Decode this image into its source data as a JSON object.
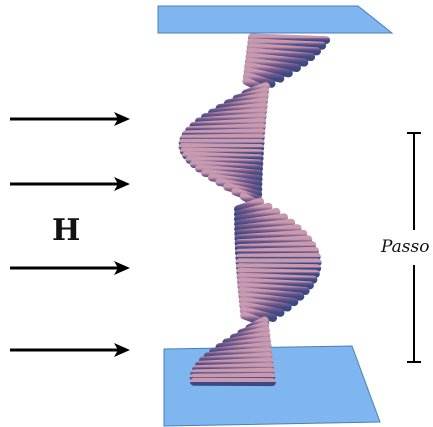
{
  "figure": {
    "field_label": "H",
    "pitch_label": "Passo",
    "arrow_count": 4,
    "colors": {
      "plate_fill": "#7fb6ef",
      "plate_stroke": "#4a7fb8",
      "molecule_body": "#7a5a8a",
      "molecule_light": "#b88aa6",
      "molecule_dark": "#3f4f86",
      "arrow": "#000000"
    }
  }
}
